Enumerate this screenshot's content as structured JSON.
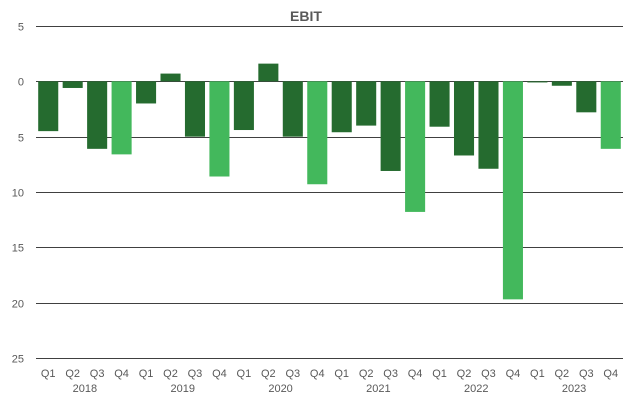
{
  "chart_data": {
    "type": "bar",
    "title": "EBIT",
    "xlabel": "",
    "ylabel": "",
    "ylim": [
      -25,
      5
    ],
    "yticks": [
      5,
      0,
      -5,
      -10,
      -15,
      -20,
      -25
    ],
    "ytick_labels": [
      "5",
      "0",
      "5",
      "10",
      "15",
      "20",
      "25"
    ],
    "grid": true,
    "legend": "none",
    "colors": {
      "regular": "#256b2f",
      "q4": "#43b85c"
    },
    "categories": [
      "Q1",
      "Q2",
      "Q3",
      "Q4",
      "Q1",
      "Q2",
      "Q3",
      "Q4",
      "Q1",
      "Q2",
      "Q3",
      "Q4",
      "Q1",
      "Q2",
      "Q3",
      "Q4",
      "Q1",
      "Q2",
      "Q3",
      "Q4",
      "Q1",
      "Q2",
      "Q3",
      "Q4"
    ],
    "groups": [
      {
        "label": "2018",
        "start": 0,
        "end": 3
      },
      {
        "label": "2019",
        "start": 4,
        "end": 7
      },
      {
        "label": "2020",
        "start": 8,
        "end": 11
      },
      {
        "label": "2021",
        "start": 12,
        "end": 15
      },
      {
        "label": "2022",
        "start": 16,
        "end": 19
      },
      {
        "label": "2023",
        "start": 20,
        "end": 23
      }
    ],
    "values": [
      -4.5,
      -0.6,
      -6.1,
      -6.6,
      -2.0,
      0.7,
      -5.0,
      -8.6,
      -4.4,
      1.6,
      -5.0,
      -9.3,
      -4.6,
      -4.0,
      -8.1,
      -11.8,
      -4.1,
      -6.7,
      -7.9,
      -19.7,
      -0.1,
      -0.4,
      -2.8,
      -6.1
    ]
  }
}
